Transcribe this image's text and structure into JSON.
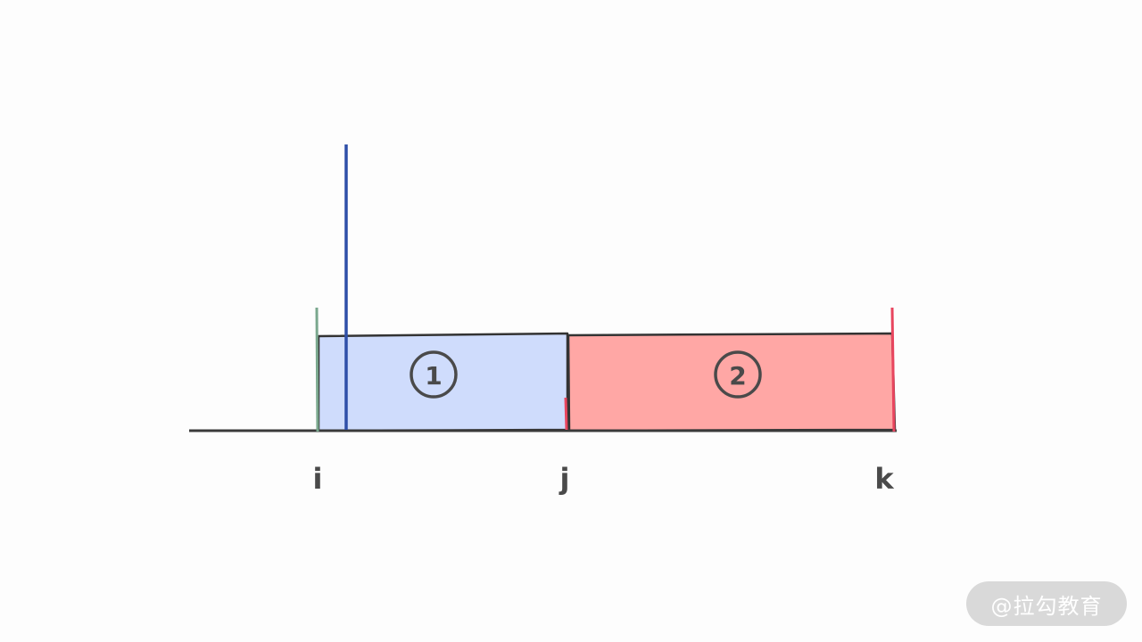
{
  "diagram": {
    "segments": [
      {
        "marker": "1",
        "fill": "#cfdcfc"
      },
      {
        "marker": "2",
        "fill": "#ffa7a5"
      }
    ],
    "index_labels": {
      "i": "i",
      "j": "j",
      "k": "k"
    },
    "colors": {
      "axis": "#3a3a3a",
      "outline": "#333333",
      "green_marker": "#7aa88e",
      "blue_marker": "#2f4fa8",
      "red_marker": "#e8455e",
      "text": "#4a4a4a"
    }
  },
  "watermark": {
    "text": "@拉勾教育"
  }
}
